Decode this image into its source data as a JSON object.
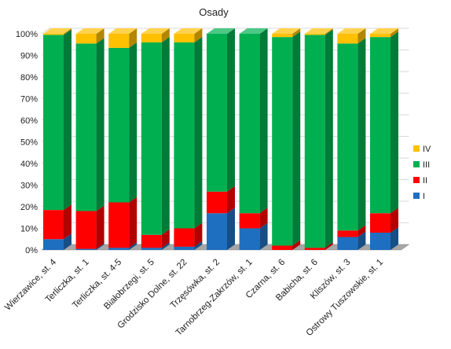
{
  "chart_data": {
    "type": "bar",
    "stacked": "percent",
    "three_d": true,
    "title": "Osady",
    "xlabel": "",
    "ylabel": "",
    "ylim": [
      0,
      100
    ],
    "ytick_labels": [
      "0%",
      "10%",
      "20%",
      "30%",
      "40%",
      "50%",
      "60%",
      "70%",
      "80%",
      "90%",
      "100%"
    ],
    "grid": true,
    "legend_position": "right",
    "categories": [
      "Wierzawice, st. 4",
      "Terliczka, st. 1",
      "Terliczka, st. 4-5",
      "Białobrzegi, st. 5",
      "Grodzisko Dolne, st. 22",
      "Trzęsówka, st. 2",
      "Tarnobrzeg-Zakrzów, st. 1",
      "Czarna, st. 6",
      "Babicha, st. 6",
      "Kliszów, st. 3",
      "Ostrowy Tuszowskie, st. 1"
    ],
    "series": [
      {
        "name": "I",
        "color": "#1f6fc0",
        "values": [
          5,
          0.5,
          1,
          1,
          1.5,
          17,
          10,
          0,
          0,
          6,
          8
        ]
      },
      {
        "name": "II",
        "color": "#ff0000",
        "values": [
          13.5,
          17.5,
          21,
          6,
          8.5,
          10,
          7,
          2,
          1,
          3,
          9
        ]
      },
      {
        "name": "III",
        "color": "#00b050",
        "values": [
          81,
          77.5,
          71.5,
          89,
          86,
          73,
          83,
          96.5,
          98.5,
          86.5,
          81.5
        ]
      },
      {
        "name": "IV",
        "color": "#ffc000",
        "values": [
          0.5,
          4.5,
          6.5,
          4,
          4,
          0,
          0,
          1.5,
          0.5,
          4.5,
          1.5
        ]
      }
    ]
  }
}
